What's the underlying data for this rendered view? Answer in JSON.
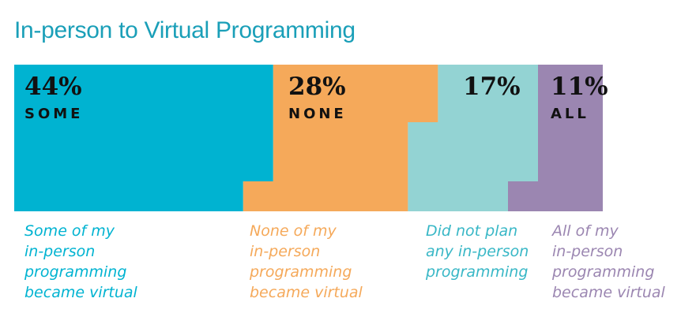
{
  "colors": {
    "title": "#1a9fb8",
    "some": "#00b3d1",
    "none": "#f5a95a",
    "not_planned": "#93d3d3",
    "all": "#9b86b1"
  },
  "chart_data": {
    "type": "bar",
    "title": "In-person to Virtual Programming",
    "segments": [
      {
        "key": "some",
        "value": 44,
        "value_label": "44%",
        "category": "SOME",
        "description": [
          "Some of my",
          "in-person",
          "programming",
          "became virtual"
        ],
        "color": "#00b3d1"
      },
      {
        "key": "none",
        "value": 28,
        "value_label": "28%",
        "category": "NONE",
        "description": [
          "None of my",
          "in-person",
          "programming",
          "became virtual"
        ],
        "color": "#f5a95a"
      },
      {
        "key": "not_planned",
        "value": 17,
        "value_label": "17%",
        "category": "",
        "description": [
          "Did not plan",
          "any in-person",
          "programming"
        ],
        "color": "#93d3d3"
      },
      {
        "key": "all",
        "value": 11,
        "value_label": "11%",
        "category": "ALL",
        "description": [
          "All of my",
          "in-person",
          "programming",
          "became virtual"
        ],
        "color": "#9b86b1"
      }
    ]
  }
}
